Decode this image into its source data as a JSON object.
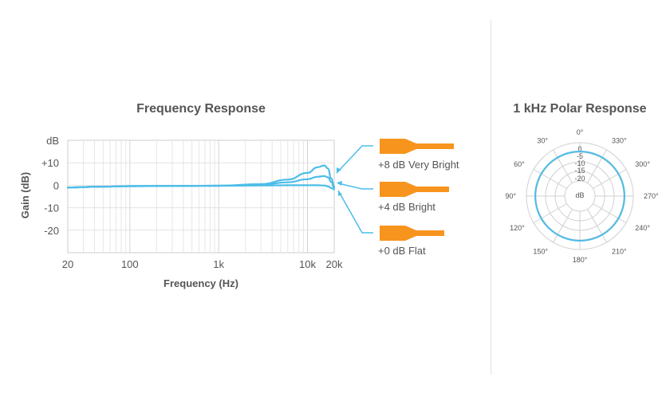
{
  "chart_data": [
    {
      "type": "line",
      "title": "Frequency Response",
      "xlabel": "Frequency (Hz)",
      "ylabel": "Gain (dB)",
      "x_scale": "log",
      "xlim": [
        20,
        20000
      ],
      "ylim": [
        -30,
        20
      ],
      "x_ticks": [
        {
          "value": 20,
          "label": "20"
        },
        {
          "value": 100,
          "label": "100"
        },
        {
          "value": 1000,
          "label": "1k"
        },
        {
          "value": 10000,
          "label": "10k"
        },
        {
          "value": 20000,
          "label": "20k"
        }
      ],
      "y_ticks": [
        {
          "value": 10,
          "label": "+10"
        },
        {
          "value": 0,
          "label": "0"
        },
        {
          "value": -10,
          "label": "-10"
        },
        {
          "value": -20,
          "label": "-20"
        }
      ],
      "y_unit_label": "dB",
      "grid": true,
      "series": [
        {
          "name": "+8 dB Very Bright",
          "x": [
            20,
            50,
            100,
            300,
            1000,
            3000,
            6000,
            10000,
            13000,
            15500,
            17000,
            18500,
            20000
          ],
          "y": [
            -1,
            -0.6,
            -0.4,
            -0.3,
            -0.2,
            0.5,
            2.5,
            5.5,
            8,
            8.8,
            7.5,
            3,
            -0.5
          ]
        },
        {
          "name": "+4 dB Bright",
          "x": [
            20,
            50,
            100,
            300,
            1000,
            3000,
            6000,
            10000,
            13000,
            15500,
            17000,
            18500,
            20000
          ],
          "y": [
            -1,
            -0.6,
            -0.4,
            -0.3,
            -0.2,
            0.3,
            1.3,
            2.7,
            3.8,
            4.1,
            3.5,
            1.5,
            -1
          ]
        },
        {
          "name": "+0 dB Flat",
          "x": [
            20,
            50,
            100,
            300,
            1000,
            3000,
            6000,
            10000,
            13000,
            15500,
            17000,
            18500,
            20000
          ],
          "y": [
            -1,
            -0.6,
            -0.4,
            -0.3,
            -0.2,
            -0.1,
            0,
            0,
            0,
            -0.1,
            -0.5,
            -1.2,
            -1.8
          ]
        }
      ],
      "color": "#4cbde8",
      "legend": {
        "placement": "right",
        "items": [
          "+8 dB Very Bright",
          "+4 dB Bright",
          "+0 dB Flat"
        ],
        "icon": "orange-filter-nozzle-icon",
        "icon_color": "#f7941e"
      }
    },
    {
      "type": "polar",
      "title": "1 kHz Polar Response",
      "angle_labels": [
        "0°",
        "30°",
        "60°",
        "90°",
        "120°",
        "150°",
        "180°",
        "210°",
        "240°",
        "270°",
        "300°",
        "330°"
      ],
      "radial_labels": [
        "0",
        "-5",
        "-10",
        "-15",
        "-20",
        "dB"
      ],
      "series": [
        {
          "angles_deg": [
            0,
            30,
            60,
            90,
            120,
            150,
            180,
            210,
            240,
            270,
            300,
            330
          ],
          "values_db": [
            0,
            0,
            0,
            0,
            0,
            0,
            0,
            0,
            0,
            0,
            0,
            0
          ]
        }
      ],
      "color": "#4cbde8",
      "pattern": "omnidirectional"
    }
  ]
}
